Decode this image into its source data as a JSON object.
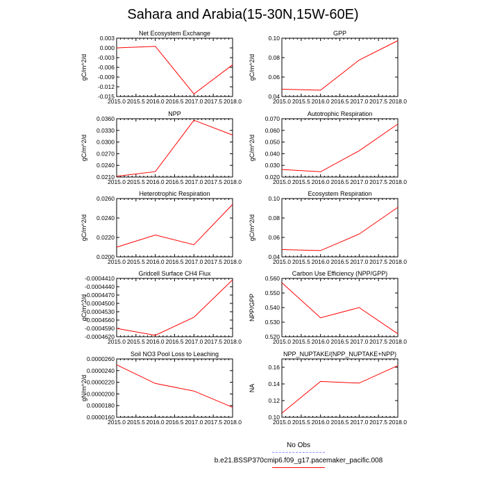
{
  "figure": {
    "title": "Sahara and Arabia(15-30N,15W-60E)",
    "line_color": "#ff0000",
    "obs_line_color": "#8a8aff"
  },
  "legend": {
    "obs_label": "No Obs",
    "run_label": "b.e21.BSSP370cmip6.f09_g17.pacemaker_pacific.008"
  },
  "chart_data": [
    {
      "type": "line",
      "title": "Net Ecosystem Exchange",
      "ylabel": "gC/m^2/d",
      "x": [
        2015,
        2016,
        2017,
        2018
      ],
      "y": [
        0.0,
        0.0005,
        -0.0142,
        -0.0052
      ],
      "xlim": [
        2015,
        2018
      ],
      "ylim": [
        -0.015,
        0.003
      ],
      "yticks": [
        "0.003",
        "0.000",
        "-0.003",
        "-0.006",
        "-0.009",
        "-0.012",
        "-0.015"
      ],
      "xticks": [
        "2015.0",
        "2015.5",
        "2016.0",
        "2016.5",
        "2017.0",
        "2017.5",
        "2018.0"
      ]
    },
    {
      "type": "line",
      "title": "GPP",
      "ylabel": "gC/m^2/d",
      "x": [
        2015,
        2016,
        2017,
        2018
      ],
      "y": [
        0.0475,
        0.0465,
        0.0775,
        0.0975
      ],
      "xlim": [
        2015,
        2018
      ],
      "ylim": [
        0.04,
        0.1
      ],
      "yticks": [
        "0.10",
        "0.08",
        "0.06",
        "0.04"
      ],
      "xticks": [
        "2015.0",
        "2015.5",
        "2016.0",
        "2016.5",
        "2017.0",
        "2017.5",
        "2018.0"
      ]
    },
    {
      "type": "line",
      "title": "NPP",
      "ylabel": "gC/m^2/d",
      "x": [
        2015,
        2016,
        2017,
        2018
      ],
      "y": [
        0.0212,
        0.0224,
        0.0356,
        0.0318
      ],
      "xlim": [
        2015,
        2018
      ],
      "ylim": [
        0.021,
        0.036
      ],
      "yticks": [
        "0.0360",
        "0.0330",
        "0.0300",
        "0.0270",
        "0.0240",
        "0.0210"
      ],
      "xticks": [
        "2015.0",
        "2015.5",
        "2016.0",
        "2016.5",
        "2017.0",
        "2017.5",
        "2018.0"
      ]
    },
    {
      "type": "line",
      "title": "Autotrophic Respiration",
      "ylabel": "gC/m^2/d",
      "x": [
        2015,
        2016,
        2017,
        2018
      ],
      "y": [
        0.0265,
        0.0245,
        0.0425,
        0.0655
      ],
      "xlim": [
        2015,
        2018
      ],
      "ylim": [
        0.02,
        0.07
      ],
      "yticks": [
        "0.070",
        "0.060",
        "0.050",
        "0.040",
        "0.030",
        "0.020"
      ],
      "xticks": [
        "2015.0",
        "2015.5",
        "2016.0",
        "2016.5",
        "2017.0",
        "2017.5",
        "2018.0"
      ]
    },
    {
      "type": "line",
      "title": "Heterotrophic Respiration",
      "ylabel": "gC/m^2/d",
      "x": [
        2015,
        2016,
        2017,
        2018
      ],
      "y": [
        0.021,
        0.02225,
        0.02125,
        0.0254
      ],
      "xlim": [
        2015,
        2018
      ],
      "ylim": [
        0.02,
        0.026
      ],
      "yticks": [
        "0.0260",
        "0.0240",
        "0.0220",
        "0.0200"
      ],
      "xticks": [
        "2015.0",
        "2015.5",
        "2016.0",
        "2016.5",
        "2017.0",
        "2017.5",
        "2018.0"
      ]
    },
    {
      "type": "line",
      "title": "Ecosystem Respiration",
      "ylabel": "gC/m^2/d",
      "x": [
        2015,
        2016,
        2017,
        2018
      ],
      "y": [
        0.0475,
        0.0465,
        0.0635,
        0.091
      ],
      "xlim": [
        2015,
        2018
      ],
      "ylim": [
        0.04,
        0.1
      ],
      "yticks": [
        "0.10",
        "0.08",
        "0.06",
        "0.04"
      ],
      "xticks": [
        "2015.0",
        "2015.5",
        "2016.0",
        "2016.5",
        "2017.0",
        "2017.5",
        "2018.0"
      ]
    },
    {
      "type": "line",
      "title": "Gridcell Surface CH4 Flux",
      "ylabel": "gC/m^2/d",
      "x": [
        2015,
        2016,
        2017,
        2018
      ],
      "y": [
        -0.000459,
        -0.0004615,
        -0.000455,
        -0.0004415
      ],
      "xlim": [
        2015,
        2018
      ],
      "ylim": [
        -0.000462,
        -0.000441
      ],
      "yticks": [
        "-0.0004410",
        "-0.0004440",
        "-0.0004470",
        "-0.0004500",
        "-0.0004530",
        "-0.0004560",
        "-0.0004590",
        "-0.0004620"
      ],
      "xticks": [
        "2015.0",
        "2015.5",
        "2016.0",
        "2016.5",
        "2017.0",
        "2017.5",
        "2018.0"
      ]
    },
    {
      "type": "line",
      "title": "Carbon Use Efficiency (NPP/GPP)",
      "ylabel": "NPP/GPP",
      "x": [
        2015,
        2016,
        2017,
        2018
      ],
      "y": [
        0.557,
        0.533,
        0.54,
        0.522
      ],
      "xlim": [
        2015,
        2018
      ],
      "ylim": [
        0.52,
        0.56
      ],
      "yticks": [
        "0.560",
        "0.550",
        "0.540",
        "0.530",
        "0.520"
      ],
      "xticks": [
        "2015.0",
        "2015.5",
        "2016.0",
        "2016.5",
        "2017.0",
        "2017.5",
        "2018.0"
      ]
    },
    {
      "type": "line",
      "title": "Soil NO3 Pool Loss to Leaching",
      "ylabel": "gN/m^2/d",
      "x": [
        2015,
        2016,
        2017,
        2018
      ],
      "y": [
        2.5e-05,
        2.18e-05,
        2.05e-05,
        1.77e-05
      ],
      "xlim": [
        2015,
        2018
      ],
      "ylim": [
        1.6e-05,
        2.6e-05
      ],
      "yticks": [
        "0.0000260",
        "0.0000240",
        "0.0000220",
        "0.0000200",
        "0.0000180",
        "0.0000160"
      ],
      "xticks": [
        "2015.0",
        "2015.5",
        "2016.0",
        "2016.5",
        "2017.0",
        "2017.5",
        "2018.0"
      ]
    },
    {
      "type": "line",
      "title": "NPP_NUPTAKE/(NPP_NUPTAKE+NPP)",
      "ylabel": "NA",
      "x": [
        2015,
        2016,
        2017,
        2018
      ],
      "y": [
        0.105,
        0.143,
        0.141,
        0.162
      ],
      "xlim": [
        2015,
        2018
      ],
      "ylim": [
        0.1,
        0.17
      ],
      "yticks": [
        "0.16",
        "0.14",
        "0.12",
        "0.10"
      ],
      "xticks": [
        "2015.0",
        "2015.5",
        "2016.0",
        "2016.5",
        "2017.0",
        "2017.5",
        "2018.0"
      ]
    }
  ]
}
